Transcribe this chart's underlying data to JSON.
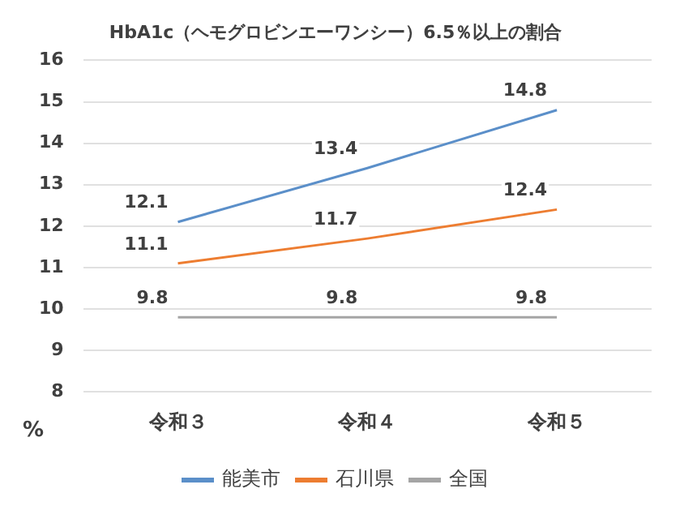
{
  "chart_data": {
    "type": "line",
    "title": "HbA1c（ヘモグロビンエーワンシー）6.5％以上の割合",
    "ylabel": "%",
    "categories": [
      "令和３",
      "令和４",
      "令和５"
    ],
    "series": [
      {
        "name": "能美市",
        "color": "#5b8fc9",
        "values": [
          12.1,
          13.4,
          14.8
        ]
      },
      {
        "name": "石川県",
        "color": "#ed7d31",
        "values": [
          11.1,
          11.7,
          12.4
        ]
      },
      {
        "name": "全国",
        "color": "#a5a5a5",
        "values": [
          9.8,
          9.8,
          9.8
        ]
      }
    ],
    "ylim": [
      8,
      16
    ],
    "yticks": [
      8,
      9,
      10,
      11,
      12,
      13,
      14,
      15,
      16
    ],
    "grid": "y",
    "legend": "bottom",
    "data_labels": true,
    "marker": "none",
    "line_style": "solid"
  }
}
